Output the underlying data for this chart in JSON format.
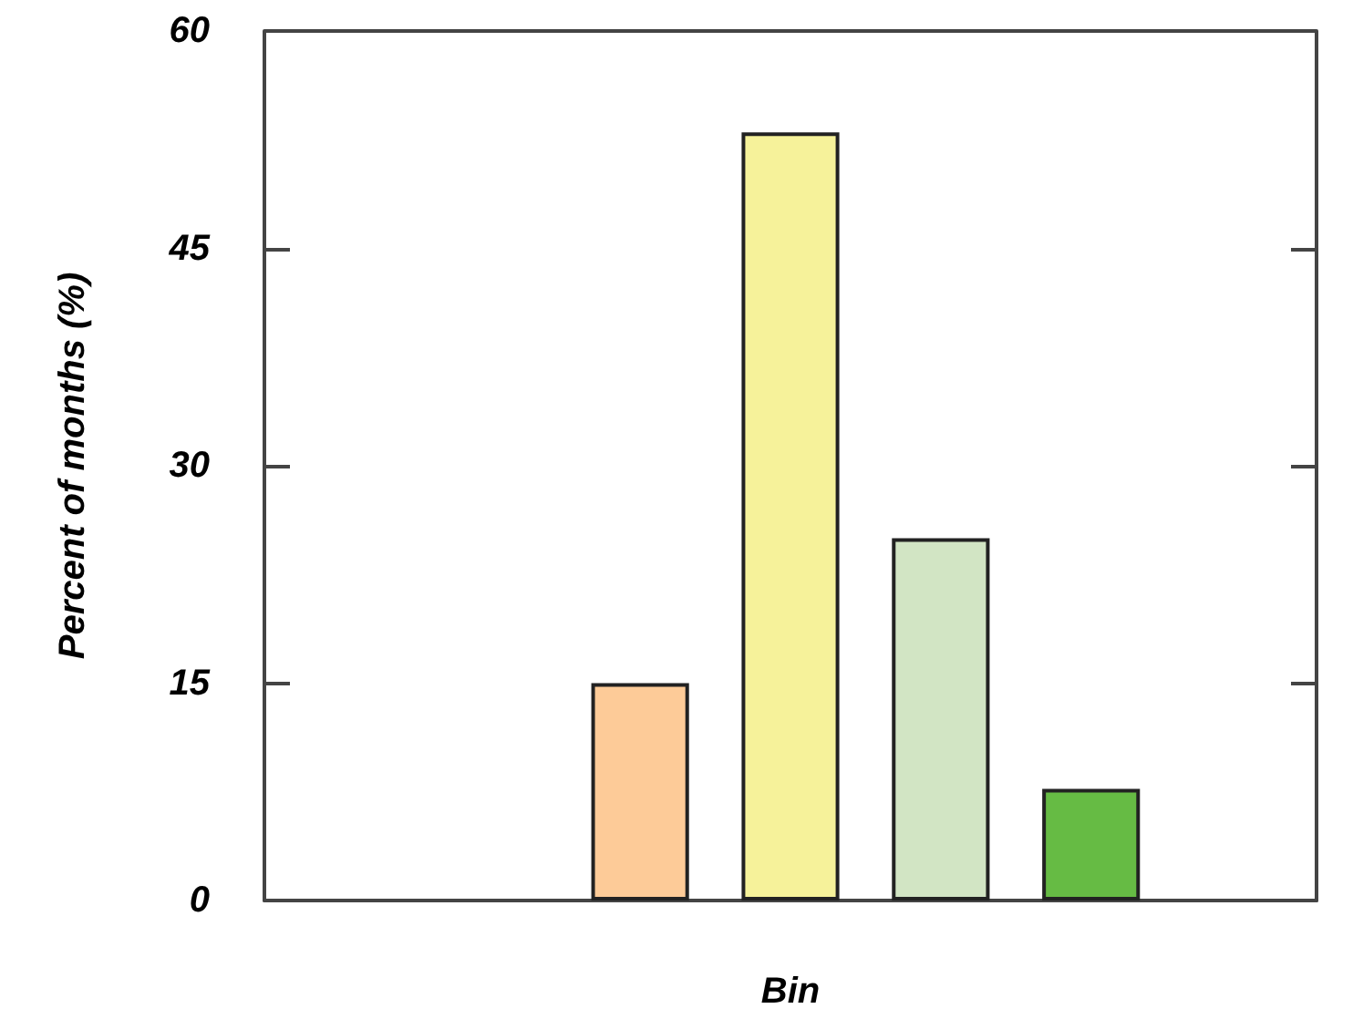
{
  "chart_data": {
    "type": "bar",
    "xlabel": "Bin",
    "ylabel": "Percent of months (%)",
    "categories": [
      null,
      null,
      null,
      null,
      null,
      null,
      null
    ],
    "values": [
      null,
      null,
      15,
      53,
      25,
      7.7,
      null
    ],
    "colors": [
      null,
      null,
      "#fdcb98",
      "#f6f29a",
      "#d2e5c4",
      "#66bb44",
      null
    ],
    "ylim": [
      0,
      60
    ],
    "yticks": [
      0,
      15,
      30,
      45,
      60
    ],
    "grid": false
  }
}
